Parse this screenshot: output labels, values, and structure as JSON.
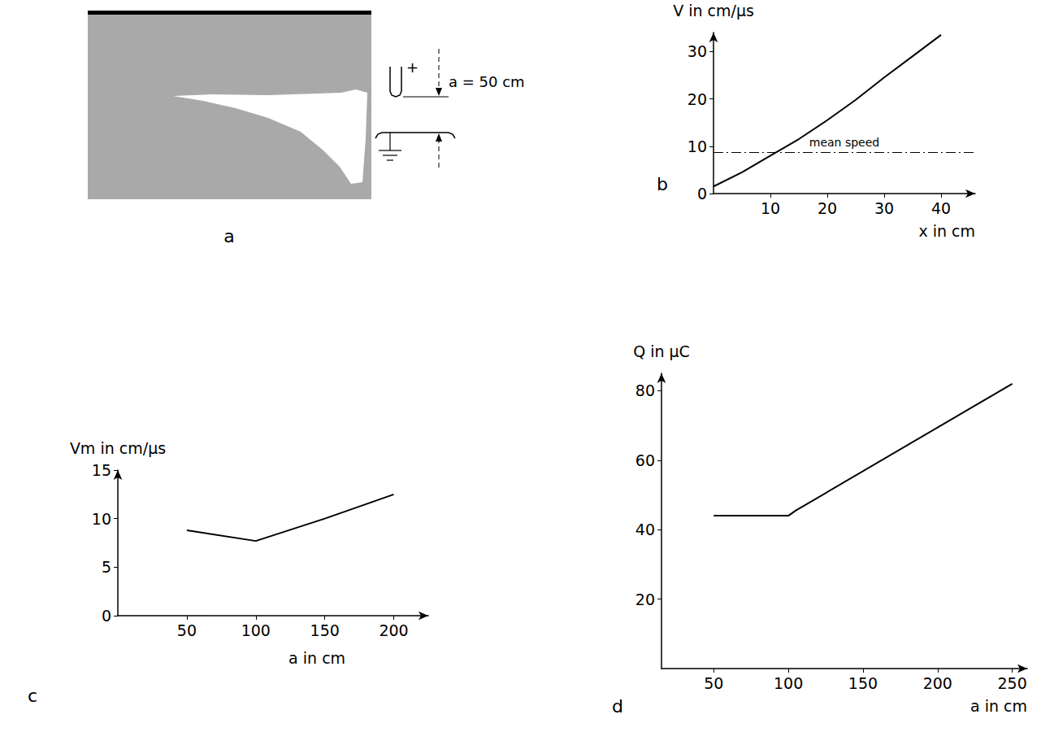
{
  "image_panel": {
    "panel": "a",
    "type": "photograph",
    "annotations": [
      "+",
      "a = 50 cm"
    ]
  },
  "chart_data": [
    {
      "panel": "b",
      "type": "line",
      "x": [
        0,
        5,
        10,
        15,
        20,
        25,
        30,
        35,
        40
      ],
      "values": [
        1.5,
        4.5,
        8,
        11.5,
        15.5,
        19.8,
        24.5,
        29,
        33.5
      ],
      "xlabel": "x in cm",
      "ylabel": "V in cm/µs",
      "xlim": [
        0,
        46
      ],
      "xticks": [
        10,
        20,
        30,
        40
      ],
      "ylim": [
        0,
        34
      ],
      "yticks": [
        0,
        10,
        20,
        30
      ],
      "grid": false,
      "color": "#000000",
      "reference_lines": [
        {
          "y": 8.8,
          "label": "mean speed",
          "line_style": "dashdot"
        }
      ]
    },
    {
      "panel": "c",
      "type": "line",
      "x": [
        50,
        100,
        150,
        200
      ],
      "values": [
        8.8,
        7.7,
        10,
        12.5
      ],
      "xlabel": "a in cm",
      "ylabel": "Vm in cm/µs",
      "xlim": [
        0,
        225
      ],
      "xticks": [
        50,
        100,
        150,
        200
      ],
      "ylim": [
        0,
        15
      ],
      "yticks": [
        0,
        5,
        10,
        15
      ],
      "grid": false,
      "color": "#000000"
    },
    {
      "panel": "d",
      "type": "line",
      "x": [
        50,
        100,
        105,
        250
      ],
      "values": [
        44,
        44,
        45.5,
        82
      ],
      "xlabel": "a in cm",
      "ylabel": "Q in µC",
      "xlim": [
        15,
        260
      ],
      "xticks": [
        50,
        100,
        150,
        200,
        250
      ],
      "ylim": [
        0,
        85
      ],
      "yticks": [
        20,
        40,
        60,
        80
      ],
      "grid": false,
      "color": "#000000"
    }
  ]
}
